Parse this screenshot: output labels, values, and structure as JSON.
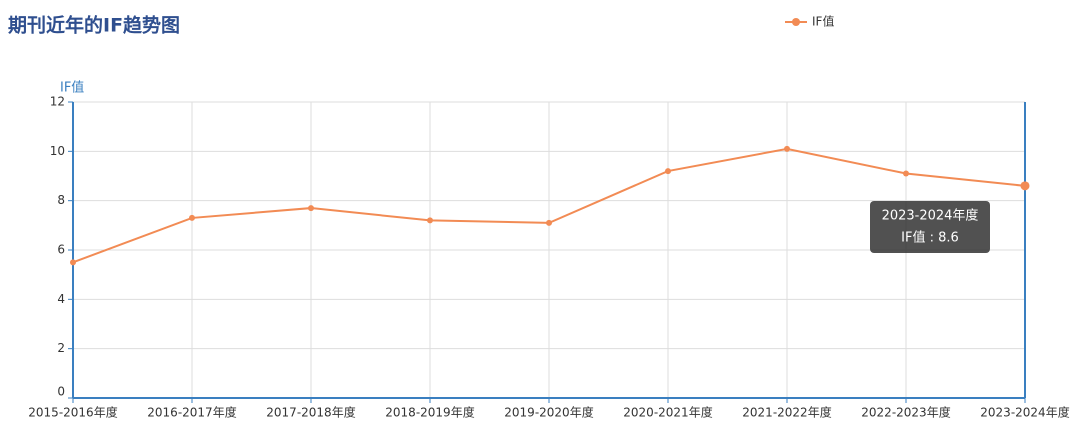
{
  "chart_data": {
    "type": "line",
    "title": "期刊近年的IF趋势图",
    "y_axis_label": "IF值",
    "categories": [
      "2015-2016年度",
      "2016-2017年度",
      "2017-2018年度",
      "2018-2019年度",
      "2019-2020年度",
      "2020-2021年度",
      "2021-2022年度",
      "2022-2023年度",
      "2023-2024年度"
    ],
    "series": [
      {
        "name": "IF值",
        "color": "#f28b54",
        "values": [
          5.5,
          7.3,
          7.7,
          7.2,
          7.1,
          9.2,
          10.1,
          9.1,
          8.6
        ]
      }
    ],
    "ylim": [
      0,
      12
    ],
    "yticks": [
      0,
      2,
      4,
      6,
      8,
      10,
      12
    ],
    "grid": true,
    "tooltip": {
      "title": "2023-2024年度",
      "text": "IF值 : 8.6"
    }
  }
}
